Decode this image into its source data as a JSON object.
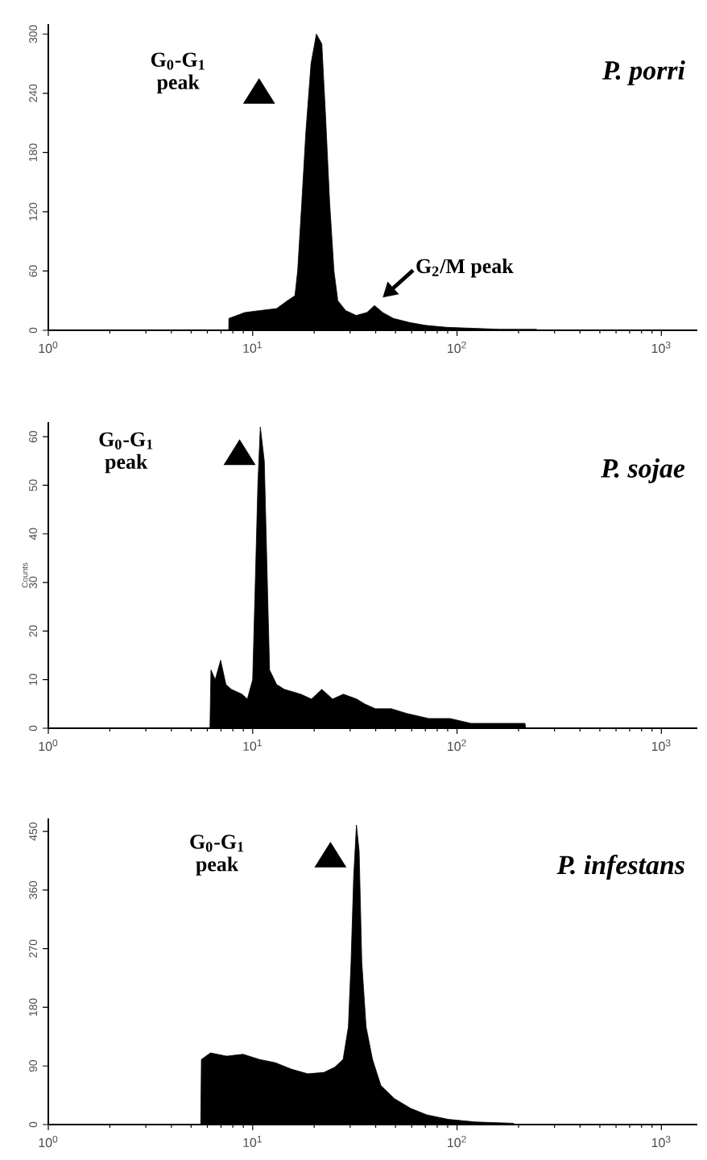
{
  "chart_data": [
    {
      "type": "area",
      "title": "P. porri",
      "log": "x",
      "color": "#000000",
      "xlim": [
        1,
        1500
      ],
      "xticks": [
        {
          "value": 1,
          "label": "10$^{0}$"
        },
        {
          "value": 10,
          "label": "10$^{1}$"
        },
        {
          "value": 100,
          "label": "10$^{2}$"
        },
        {
          "value": 1000,
          "label": "10$^{3}$"
        }
      ],
      "ylim": [
        0,
        310
      ],
      "yticks": [
        0,
        60,
        120,
        180,
        240,
        300
      ],
      "x": [
        7.64,
        7.65,
        9.14,
        10.9,
        13.1,
        14.8,
        16.1,
        16.6,
        17.4,
        18.2,
        19.3,
        20.5,
        21.8,
        22.7,
        23.8,
        25.0,
        26.1,
        28.5,
        32.1,
        36.2,
        39.5,
        43.3,
        48.8,
        58.3,
        69.9,
        88.7,
        120,
        161,
        245,
        246
      ],
      "values": [
        0,
        12,
        18,
        20,
        22,
        30,
        35,
        60,
        130,
        200,
        270,
        300,
        290,
        220,
        130,
        60,
        30,
        20,
        15,
        18,
        25,
        18,
        12,
        8,
        5,
        3,
        2,
        1,
        1,
        0
      ],
      "annotations": [
        "G$_{0}$-G$_{1}$ peak",
        {
          "text": "G$_{2}$/M peak",
          "x": 39.5,
          "y": 25
        }
      ]
    },
    {
      "type": "area",
      "title": "P. sojae",
      "log": "x",
      "color": "#000000",
      "ylabel": "Counts",
      "xlim": [
        1,
        1500
      ],
      "xticks": [
        {
          "value": 1,
          "label": "10$^{0}$"
        },
        {
          "value": 10,
          "label": "10$^{1}$"
        },
        {
          "value": 100,
          "label": "10$^{2}$"
        },
        {
          "value": 1000,
          "label": "10$^{3}$"
        }
      ],
      "ylim": [
        0,
        63
      ],
      "yticks": [
        0,
        10,
        20,
        30,
        40,
        50,
        60
      ],
      "x": [
        6.18,
        6.25,
        6.56,
        6.97,
        7.4,
        7.87,
        8.87,
        9.42,
        10,
        10.3,
        10.6,
        10.9,
        11.4,
        11.8,
        12.1,
        13.1,
        14.3,
        17.2,
        19.4,
        21.8,
        24.6,
        27.8,
        32.3,
        35.3,
        39.9,
        47.7,
        57.2,
        72.7,
        92.5,
        117,
        159,
        215,
        217
      ],
      "values": [
        0,
        12,
        10,
        14,
        9,
        8,
        7,
        6,
        10,
        30,
        50,
        62,
        55,
        30,
        12,
        9,
        8,
        7,
        6,
        8,
        6,
        7,
        6,
        5,
        4,
        4,
        3,
        2,
        2,
        1,
        1,
        1,
        0
      ],
      "annotations": [
        "G$_{0}$-G$_{1}$ peak"
      ]
    },
    {
      "type": "area",
      "title": "P. infestans",
      "log": "x",
      "color": "#000000",
      "xlim": [
        1,
        1500
      ],
      "xticks": [
        {
          "value": 1,
          "label": "10$^{0}$"
        },
        {
          "value": 10,
          "label": "10$^{1}$"
        },
        {
          "value": 100,
          "label": "10$^{2}$"
        },
        {
          "value": 1000,
          "label": "10$^{3}$"
        }
      ],
      "ylim": [
        0,
        470
      ],
      "yticks": [
        0,
        90,
        180,
        270,
        360,
        450
      ],
      "x": [
        5.57,
        5.61,
        6.22,
        7.46,
        8.96,
        10.8,
        12.9,
        15.5,
        18.6,
        22.3,
        25.2,
        27.7,
        29.4,
        30.3,
        31.2,
        32.2,
        33.2,
        34.2,
        35.9,
        38.6,
        42.4,
        49.3,
        59.2,
        71.1,
        90.7,
        123,
        188,
        194
      ],
      "values": [
        0,
        100,
        110,
        105,
        108,
        100,
        95,
        85,
        78,
        80,
        88,
        100,
        150,
        250,
        380,
        460,
        420,
        250,
        150,
        100,
        60,
        40,
        25,
        15,
        8,
        4,
        2,
        0
      ],
      "annotations": [
        "G$_{0}$-G$_{1}$ peak"
      ]
    }
  ]
}
